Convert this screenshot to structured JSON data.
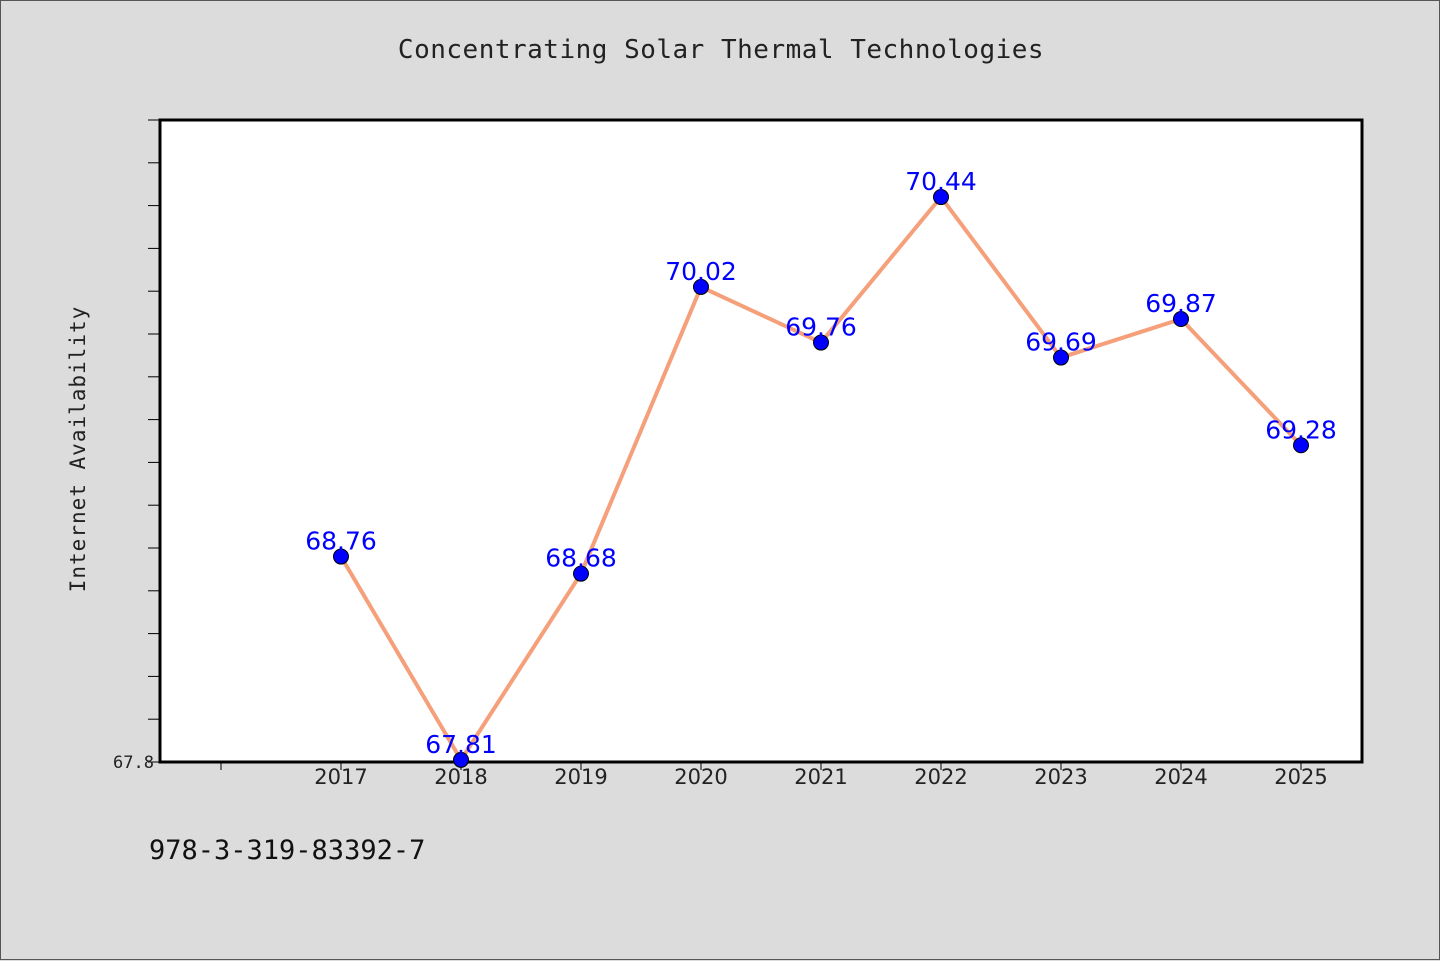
{
  "chart_data": {
    "type": "line",
    "title": "Concentrating Solar Thermal Technologies",
    "xlabel": "",
    "ylabel": "Internet Availability",
    "categories": [
      "2017",
      "2018",
      "2019",
      "2020",
      "2021",
      "2022",
      "2023",
      "2024",
      "2025"
    ],
    "series": [
      {
        "values": [
          68.76,
          67.81,
          68.68,
          70.02,
          69.76,
          70.44,
          69.69,
          69.87,
          69.28
        ],
        "data_labels": [
          "68.76",
          "67.81",
          "68.68",
          "70.02",
          "69.76",
          "70.44",
          "69.69",
          "69.87",
          "69.28"
        ],
        "line_color": "#f5a07a",
        "marker_color": "#0000ff"
      }
    ],
    "ylim": [
      67.8,
      70.8
    ],
    "ytick_labels": [
      "67.8"
    ],
    "grid": false,
    "legend": "none"
  },
  "footer": {
    "code": "978-3-319-83392-7"
  },
  "colors": {
    "background": "#dcdcdc",
    "plot_background": "#ffffff",
    "label": "#0000ff"
  }
}
